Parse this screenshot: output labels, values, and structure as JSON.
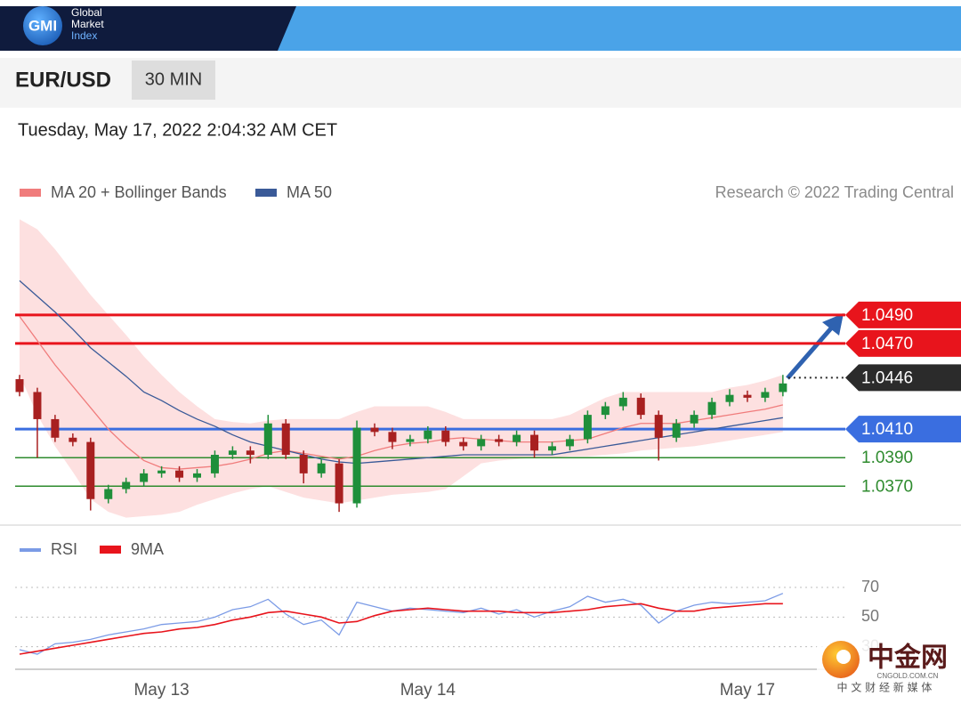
{
  "header": {
    "logo": "GMI",
    "brand": [
      "Global",
      "Market",
      "Index"
    ],
    "symbol": "EUR/USD",
    "interval": "30 MIN",
    "timestamp": "Tuesday, May 17, 2022 2:04:32 AM CET"
  },
  "watermark": {
    "name": "中金网",
    "domain": "CNGOLD.COM.CN",
    "tagline": "中 文 财 经 新 媒 体"
  },
  "chart_data": [
    {
      "type": "candlestick",
      "source": "Research © 2022 Trading Central",
      "up_color": "#1f8f3a",
      "down_color": "#a82020",
      "open": [
        1.0445,
        1.0436,
        1.0417,
        1.0404,
        1.0401,
        1.0361,
        1.0368,
        1.0373,
        1.0379,
        1.0381,
        1.0376,
        1.0379,
        1.0392,
        1.0395,
        1.0392,
        1.0414,
        1.0392,
        1.0379,
        1.0386,
        1.0358,
        1.0411,
        1.0408,
        1.0401,
        1.0403,
        1.0409,
        1.0401,
        1.0398,
        1.0403,
        1.0401,
        1.0406,
        1.0395,
        1.0398,
        1.0403,
        1.042,
        1.0426,
        1.0432,
        1.042,
        1.0404,
        1.0414,
        1.042,
        1.0429,
        1.0434,
        1.0432,
        1.0436
      ],
      "high": [
        1.0448,
        1.0439,
        1.042,
        1.0407,
        1.0404,
        1.0371,
        1.0376,
        1.0382,
        1.0384,
        1.0384,
        1.0382,
        1.0395,
        1.0398,
        1.0398,
        1.042,
        1.0417,
        1.0395,
        1.0389,
        1.0389,
        1.0416,
        1.0414,
        1.0411,
        1.0406,
        1.0412,
        1.0412,
        1.0404,
        1.0406,
        1.0406,
        1.0409,
        1.0409,
        1.0401,
        1.0406,
        1.0423,
        1.0429,
        1.0436,
        1.0435,
        1.0423,
        1.0417,
        1.0423,
        1.0432,
        1.0438,
        1.0437,
        1.0439,
        1.0448
      ],
      "low": [
        1.0433,
        1.039,
        1.0401,
        1.0398,
        1.0353,
        1.0358,
        1.0365,
        1.037,
        1.0376,
        1.0373,
        1.0373,
        1.0376,
        1.0389,
        1.0386,
        1.0389,
        1.0389,
        1.0372,
        1.0376,
        1.0352,
        1.0355,
        1.0405,
        1.0396,
        1.0398,
        1.04,
        1.0398,
        1.0395,
        1.0395,
        1.0398,
        1.0398,
        1.039,
        1.0392,
        1.0395,
        1.04,
        1.0417,
        1.0423,
        1.0417,
        1.0388,
        1.0401,
        1.0411,
        1.0417,
        1.0426,
        1.0429,
        1.0429,
        1.0433
      ],
      "close": [
        1.0436,
        1.0417,
        1.0404,
        1.0401,
        1.0361,
        1.0368,
        1.0373,
        1.0379,
        1.0381,
        1.0376,
        1.0379,
        1.0392,
        1.0395,
        1.0392,
        1.0414,
        1.0392,
        1.0379,
        1.0386,
        1.0358,
        1.0411,
        1.0408,
        1.0401,
        1.0403,
        1.0409,
        1.0401,
        1.0398,
        1.0403,
        1.0401,
        1.0406,
        1.0395,
        1.0398,
        1.0403,
        1.042,
        1.0426,
        1.0432,
        1.042,
        1.0404,
        1.0414,
        1.042,
        1.0429,
        1.0434,
        1.0432,
        1.0436,
        1.0442
      ],
      "series": [
        {
          "name": "MA 20 + Bollinger Bands",
          "color": "#f07c7c",
          "band_color": "#fde0e0",
          "values": [
            1.0489,
            1.0472,
            1.0455,
            1.044,
            1.0425,
            1.041,
            1.0398,
            1.0388,
            1.0383,
            1.0382,
            1.0383,
            1.0384,
            1.0386,
            1.0389,
            1.0393,
            1.0395,
            1.0393,
            1.0391,
            1.0389,
            1.0391,
            1.0395,
            1.0398,
            1.04,
            1.0401,
            1.0403,
            1.0404,
            1.0403,
            1.0402,
            1.0401,
            1.0401,
            1.0401,
            1.0402,
            1.0403,
            1.0407,
            1.0411,
            1.0414,
            1.0414,
            1.0414,
            1.0416,
            1.0418,
            1.042,
            1.0422,
            1.0424,
            1.0427
          ],
          "upper": [
            1.0557,
            1.055,
            1.0536,
            1.052,
            1.0504,
            1.049,
            1.0476,
            1.0461,
            1.0448,
            1.0436,
            1.0426,
            1.0417,
            1.0415,
            1.0414,
            1.0416,
            1.0417,
            1.0417,
            1.0417,
            1.0417,
            1.0422,
            1.0426,
            1.0426,
            1.0426,
            1.0426,
            1.0422,
            1.0417,
            1.0417,
            1.0417,
            1.0417,
            1.0417,
            1.0417,
            1.042,
            1.0426,
            1.0432,
            1.0436,
            1.0436,
            1.0436,
            1.0436,
            1.0436,
            1.0436,
            1.0439,
            1.0441,
            1.0444,
            1.0448
          ],
          "lower": [
            1.0448,
            1.042,
            1.0398,
            1.038,
            1.0361,
            1.0352,
            1.0348,
            1.0349,
            1.035,
            1.0352,
            1.0357,
            1.0361,
            1.0365,
            1.0368,
            1.037,
            1.0366,
            1.0362,
            1.036,
            1.0358,
            1.036,
            1.0362,
            1.0364,
            1.0365,
            1.0366,
            1.0368,
            1.0377,
            1.0386,
            1.0388,
            1.0389,
            1.039,
            1.039,
            1.0391,
            1.0391,
            1.0392,
            1.0393,
            1.0395,
            1.0396,
            1.0397,
            1.0398,
            1.04,
            1.0402,
            1.0404,
            1.0406,
            1.0408
          ]
        },
        {
          "name": "MA 50",
          "color": "#3a5a98",
          "values": [
            1.0514,
            1.0503,
            1.0492,
            1.048,
            1.0467,
            1.0457,
            1.0447,
            1.0436,
            1.043,
            1.0423,
            1.0417,
            1.0412,
            1.0406,
            1.0401,
            1.0398,
            1.0395,
            1.0392,
            1.0389,
            1.0387,
            1.0386,
            1.0387,
            1.0388,
            1.0389,
            1.039,
            1.0391,
            1.0392,
            1.0392,
            1.0392,
            1.0392,
            1.0392,
            1.0392,
            1.0394,
            1.0396,
            1.0398,
            1.04,
            1.0402,
            1.0404,
            1.0406,
            1.0408,
            1.041,
            1.0412,
            1.0414,
            1.0416,
            1.0418
          ]
        }
      ],
      "levels": [
        {
          "value": 1.049,
          "label": "1.0490",
          "color": "#e8141c",
          "style": "solid",
          "boxed": true
        },
        {
          "value": 1.047,
          "label": "1.0470",
          "color": "#e8141c",
          "style": "solid",
          "boxed": true
        },
        {
          "value": 1.0446,
          "label": "1.0446",
          "color": "#2b2b2b",
          "style": "dotted",
          "boxed": true
        },
        {
          "value": 1.041,
          "label": "1.0410",
          "color": "#3a6ee0",
          "style": "solid",
          "boxed": true
        },
        {
          "value": 1.039,
          "label": "1.0390",
          "color": "#2e8b2e",
          "style": "solid",
          "boxed": false
        },
        {
          "value": 1.037,
          "label": "1.0370",
          "color": "#2e8b2e",
          "style": "solid",
          "boxed": false
        }
      ],
      "ylim": [
        1.0344,
        1.0561
      ]
    },
    {
      "type": "line",
      "categories": [
        null,
        null,
        null,
        null,
        null,
        null,
        null,
        null,
        "May 13",
        null,
        null,
        null,
        null,
        null,
        null,
        null,
        null,
        null,
        null,
        null,
        null,
        null,
        null,
        "May 14",
        null,
        null,
        null,
        null,
        null,
        null,
        null,
        null,
        null,
        null,
        null,
        null,
        null,
        null,
        null,
        null,
        null,
        "May 17",
        null,
        null
      ],
      "series": [
        {
          "name": "RSI",
          "color": "#7b9be6",
          "values": [
            28,
            25,
            32,
            33,
            35,
            38,
            40,
            42,
            45,
            46,
            47,
            50,
            55,
            57,
            62,
            52,
            45,
            48,
            38,
            60,
            57,
            54,
            56,
            55,
            54,
            53,
            56,
            52,
            55,
            50,
            54,
            57,
            64,
            60,
            62,
            58,
            46,
            54,
            58,
            60,
            59,
            60,
            61,
            66
          ]
        },
        {
          "name": "9MA",
          "color": "#e8141c",
          "values": [
            25,
            27,
            29,
            31,
            33,
            35,
            37,
            39,
            40,
            42,
            43,
            45,
            48,
            50,
            53,
            54,
            52,
            50,
            46,
            47,
            51,
            54,
            55,
            56,
            55,
            54,
            54,
            54,
            53,
            53,
            53,
            54,
            55,
            57,
            58,
            59,
            56,
            54,
            54,
            56,
            57,
            58,
            59,
            59
          ]
        }
      ],
      "ylim": [
        13,
        79
      ],
      "yticks": [
        70,
        50,
        30
      ],
      "grid": true
    }
  ]
}
